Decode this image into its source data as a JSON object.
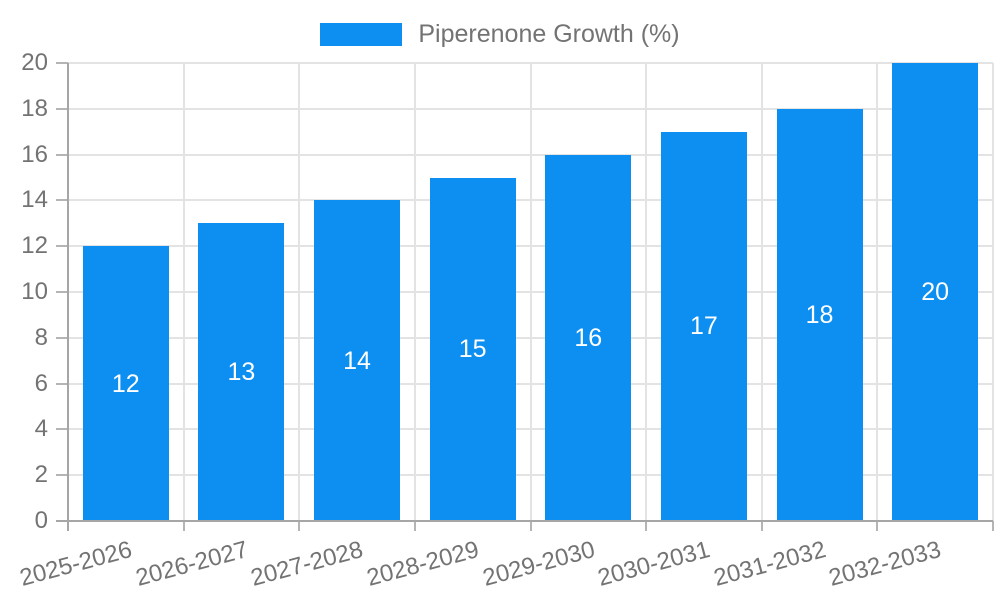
{
  "legend": {
    "label": "Piperenone Growth (%)"
  },
  "colors": {
    "bar": "#0d8ff2",
    "grid": "#e3e3e3",
    "tick": "#b5b5b5",
    "axis": "#a6a6a6",
    "text": "#737373",
    "bar_label": "#ffffff",
    "background": "#ffffff"
  },
  "chart_data": {
    "type": "bar",
    "title": "",
    "categories": [
      "2025-2026",
      "2026-2027",
      "2027-2028",
      "2028-2029",
      "2029-2030",
      "2030-2031",
      "2031-2032",
      "2032-2033"
    ],
    "series": [
      {
        "name": "Piperenone Growth (%)",
        "values": [
          12,
          13,
          14,
          15,
          16,
          17,
          18,
          20
        ]
      }
    ],
    "xlabel": "",
    "ylabel": "",
    "ylim": [
      0,
      20
    ],
    "yticks": [
      0,
      2,
      4,
      6,
      8,
      10,
      12,
      14,
      16,
      18,
      20
    ],
    "grid": true,
    "legend_position": "top",
    "bar_value_labels": true,
    "x_tick_rotation_deg": -15
  }
}
